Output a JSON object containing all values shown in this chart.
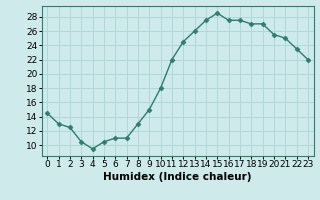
{
  "x": [
    0,
    1,
    2,
    3,
    4,
    5,
    6,
    7,
    8,
    9,
    10,
    11,
    12,
    13,
    14,
    15,
    16,
    17,
    18,
    19,
    20,
    21,
    22,
    23
  ],
  "y": [
    14.5,
    13.0,
    12.5,
    10.5,
    9.5,
    10.5,
    11.0,
    11.0,
    13.0,
    15.0,
    18.0,
    22.0,
    24.5,
    26.0,
    27.5,
    28.5,
    27.5,
    27.5,
    27.0,
    27.0,
    25.5,
    25.0,
    23.5,
    22.0
  ],
  "line_color": "#2e7d6e",
  "marker": "D",
  "marker_size": 2.5,
  "bg_color": "#ceeaea",
  "grid_color": "#b0d8d8",
  "xlabel": "Humidex (Indice chaleur)",
  "xlim": [
    -0.5,
    23.5
  ],
  "ylim": [
    8.5,
    29.5
  ],
  "yticks": [
    10,
    12,
    14,
    16,
    18,
    20,
    22,
    24,
    26,
    28
  ],
  "xticks": [
    0,
    1,
    2,
    3,
    4,
    5,
    6,
    7,
    8,
    9,
    10,
    11,
    12,
    13,
    14,
    15,
    16,
    17,
    18,
    19,
    20,
    21,
    22,
    23
  ],
  "tick_label_fontsize": 6.5,
  "xlabel_fontsize": 7.5,
  "spine_color": "#2e7d6e",
  "linewidth": 1.0
}
